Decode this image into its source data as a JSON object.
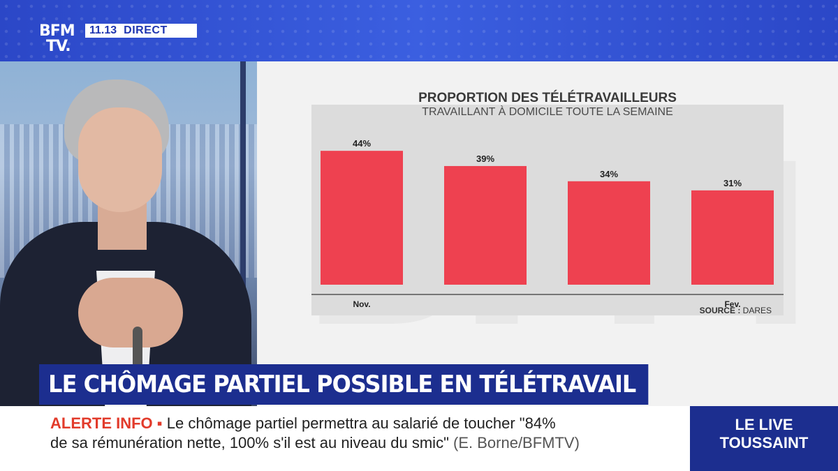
{
  "channel": {
    "logo_line1": "BFM",
    "logo_line2": "TV.",
    "time": "11.13",
    "status": "DIRECT"
  },
  "chart_data": {
    "type": "bar",
    "title": "PROPORTION DES TÉLÉTRAVAILLEURS",
    "subtitle": "TRAVAILLANT À DOMICILE TOUTE LA SEMAINE",
    "categories": [
      "Nov.",
      "",
      "",
      "Fev."
    ],
    "values": [
      44,
      39,
      34,
      31
    ],
    "value_labels": [
      "44%",
      "39%",
      "34%",
      "31%"
    ],
    "ylim": [
      0,
      50
    ],
    "bar_color": "#ee4150",
    "source_label": "SOURCE :",
    "source_value": "DARES"
  },
  "headline": "LE CHÔMAGE PARTIEL POSSIBLE EN TÉLÉTRAVAIL",
  "ticker": {
    "alert_label": "ALERTE INFO",
    "alert_bullet": "▪",
    "line1": "Le chômage partiel permettra au salarié de toucher \"84%",
    "line2": "de sa rémunération nette, 100% s'il est au niveau du smic\"",
    "attribution": "(E. Borne/BFMTV)"
  },
  "program": {
    "line1": "LE LIVE",
    "line2": "TOUSSAINT"
  },
  "colors": {
    "brand_blue": "#1c2e8f",
    "alert_red": "#e23b2b"
  }
}
